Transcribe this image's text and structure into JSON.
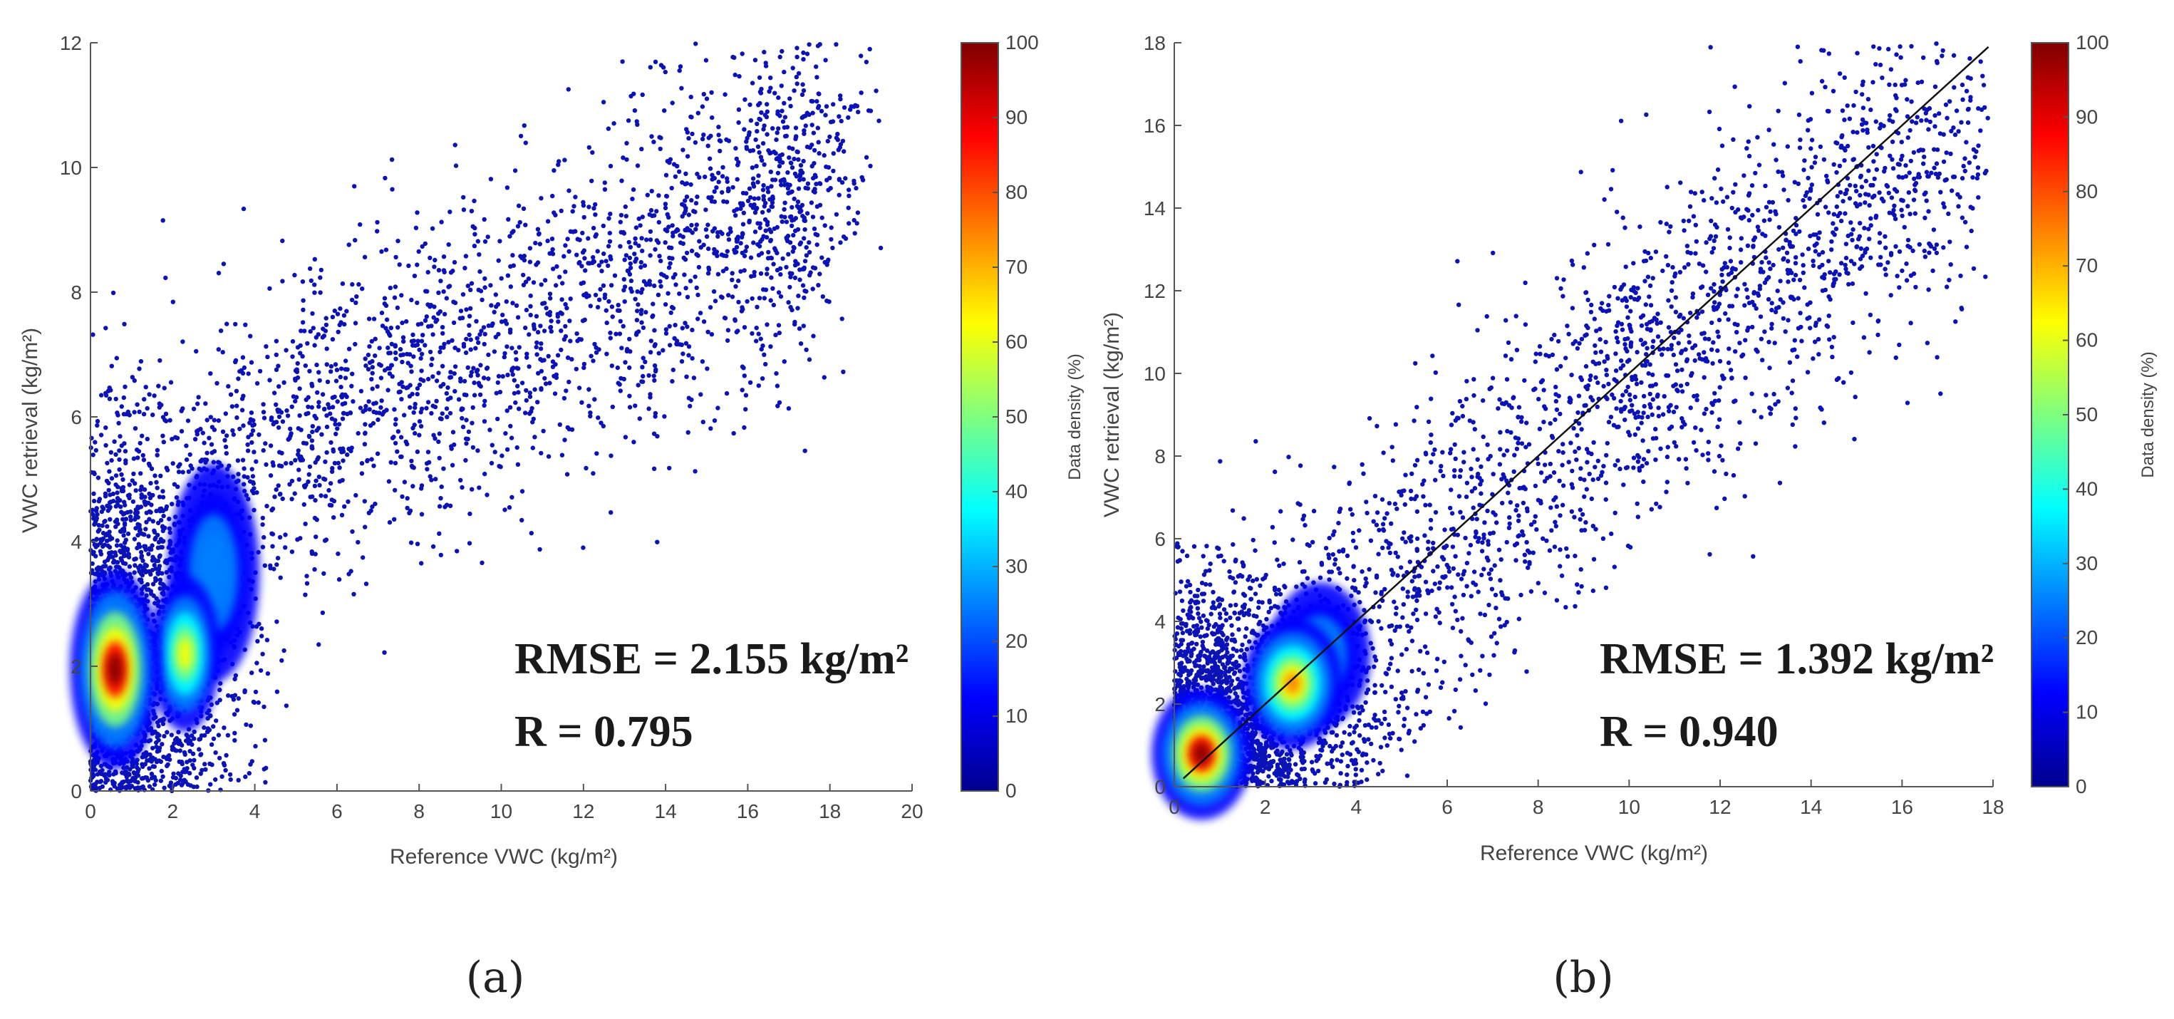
{
  "chart_data": [
    {
      "type": "scatter",
      "panel_label": "(a)",
      "xlabel": "Reference VWC (kg/m²)",
      "ylabel": "VWC retrieval (kg/m²)",
      "xlim": [
        0,
        20
      ],
      "ylim": [
        0,
        12
      ],
      "xticks": [
        0,
        2,
        4,
        6,
        8,
        10,
        12,
        14,
        16,
        18,
        20
      ],
      "yticks": [
        0,
        2,
        4,
        6,
        8,
        10,
        12
      ],
      "annotations": [
        "RMSE = 2.155 kg/m²",
        "R = 0.795"
      ],
      "density_cores": [
        {
          "x": 0.6,
          "y": 1.95,
          "level": 100
        },
        {
          "x": 2.3,
          "y": 2.2,
          "level": 58
        },
        {
          "x": 3.0,
          "y": 3.5,
          "level": 30
        }
      ],
      "point_cloud_trend": [
        [
          0.5,
          2.0
        ],
        [
          4,
          5.5
        ],
        [
          8,
          6.5
        ],
        [
          12,
          8.0
        ],
        [
          16,
          9.0
        ],
        [
          18,
          10.0
        ]
      ],
      "colorbar": {
        "label": "Data density (%)",
        "range": [
          0,
          100
        ],
        "ticks": [
          0,
          10,
          20,
          30,
          40,
          50,
          60,
          70,
          80,
          90,
          100
        ]
      }
    },
    {
      "type": "scatter",
      "panel_label": "(b)",
      "xlabel": "Reference VWC (kg/m²)",
      "ylabel": "VWC retrieval (kg/m²)",
      "xlim": [
        0,
        18
      ],
      "ylim": [
        0,
        18
      ],
      "xticks": [
        0,
        2,
        4,
        6,
        8,
        10,
        12,
        14,
        16,
        18
      ],
      "yticks": [
        0,
        2,
        4,
        6,
        8,
        10,
        12,
        14,
        16,
        18
      ],
      "annotations": [
        "RMSE = 1.392 kg/m²",
        "R = 0.940"
      ],
      "one_to_one_line": [
        [
          0.2,
          0.2
        ],
        [
          17.9,
          17.9
        ]
      ],
      "density_cores": [
        {
          "x": 0.6,
          "y": 0.8,
          "level": 100
        },
        {
          "x": 2.6,
          "y": 2.5,
          "level": 72
        },
        {
          "x": 3.2,
          "y": 3.2,
          "level": 30
        }
      ],
      "point_cloud_trend": [
        [
          0.5,
          0.5
        ],
        [
          4,
          3.5
        ],
        [
          9,
          9.0
        ],
        [
          13,
          12.5
        ],
        [
          18,
          16.5
        ]
      ],
      "colorbar": {
        "label": "Data density (%)",
        "range": [
          0,
          100
        ],
        "ticks": [
          0,
          10,
          20,
          30,
          40,
          50,
          60,
          70,
          80,
          90,
          100
        ]
      }
    }
  ],
  "colors": {
    "point": "#0a12b8",
    "jet": [
      "#00008f",
      "#0000ff",
      "#007fff",
      "#00ffff",
      "#7fff7f",
      "#ffff00",
      "#ff7f00",
      "#ff0000",
      "#7f0000"
    ]
  }
}
